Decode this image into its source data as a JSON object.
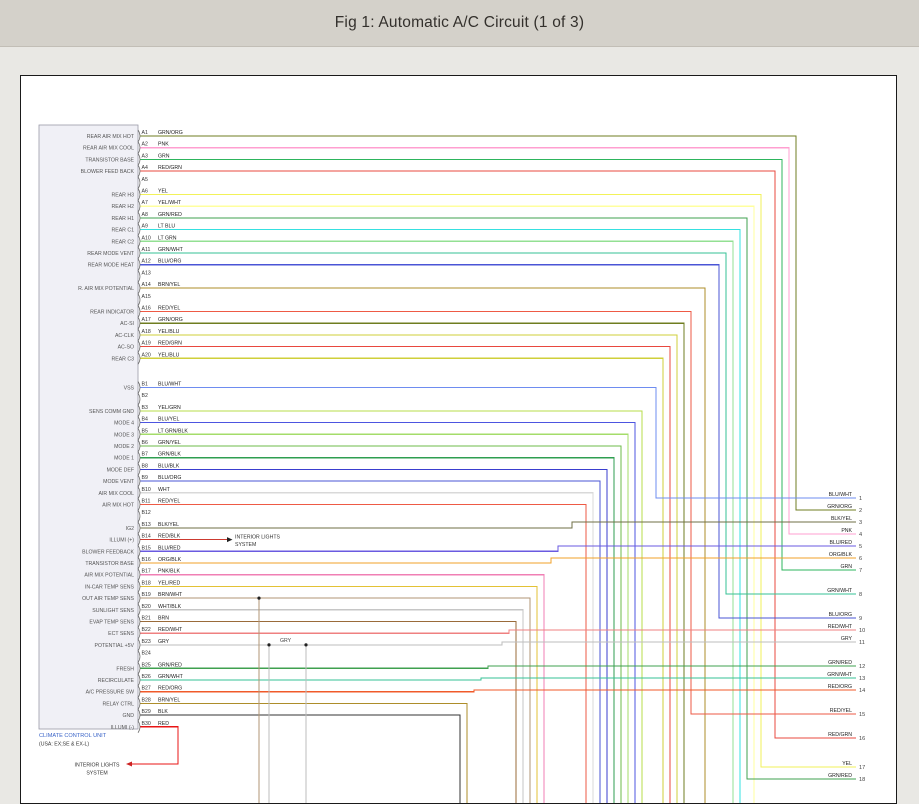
{
  "header": {
    "title": "Fig 1: Automatic A/C Circuit (1 of 3)"
  },
  "diagram": {
    "unit_label": "CLIMATE CONTROL UNIT",
    "unit_sublabel": "(USA: EX;SE & EX-L)",
    "interior_lights_mid": [
      "INTERIOR LIGHTS",
      "SYSTEM"
    ],
    "interior_lights_bottom": [
      "INTERIOR LIGHTS",
      "SYSTEM"
    ],
    "gry_junction_label": "GRY",
    "wire_colors": {
      "GRN/ORG": "#6f7d20",
      "PNK": "#ff9fd0",
      "GRN": "#2db55d",
      "RED/GRN": "#e8483f",
      "YEL": "#f2f259",
      "YEL/WHT": "#ffff9e",
      "GRN/RED": "#3fa04f",
      "LT BLU": "#35e0e0",
      "LT GRN": "#93e093",
      "GRN/WHT": "#36c295",
      "BLU/ORG": "#4a55d6",
      "BRN/YEL": "#ad8d2a",
      "RED/YEL": "#ee5a45",
      "YEL/BLU": "#cfcf3a",
      "BLU/WHT": "#6e8cf0",
      "YEL/GRN": "#b7dd4a",
      "BLU/YEL": "#4d55e0",
      "LT GRN/BLK": "#a4dc6a",
      "GRN/YEL": "#6cbb48",
      "GRN/BLK": "#2f9e50",
      "BLU/BLK": "#3a3ecf",
      "WHT": "#d9d9d9",
      "BLK/YEL": "#6f6f45",
      "RED/BLK": "#cc3a30",
      "BLU/RED": "#6a5ae0",
      "ORG/BLK": "#f0a028",
      "PNK/BLK": "#f07fb4",
      "YEL/RED": "#e3c235",
      "BRN/WHT": "#b29674",
      "WHT/BLK": "#c6c6c6",
      "BRN": "#9a6b3a",
      "RED/WHT": "#ef8080",
      "GRY": "#bdbdbd",
      "RED/ORG": "#f05a2a",
      "BLK": "#333333",
      "RED": "#e81515"
    },
    "pins": [
      {
        "pin": "A1",
        "label": "REAR AIR MIX HOT",
        "wire": "GRN/ORG",
        "dest": "R2"
      },
      {
        "pin": "A2",
        "label": "REAR AIR MIX COOL",
        "wire": "PNK",
        "dest": "R4"
      },
      {
        "pin": "A3",
        "label": "TRANSISTOR BASE",
        "wire": "GRN",
        "dest": "R7"
      },
      {
        "pin": "A4",
        "label": "BLOWER FEED BACK",
        "wire": "RED/GRN",
        "dest": "R16"
      },
      {
        "pin": "A5",
        "label": "",
        "wire": null,
        "dest": null
      },
      {
        "pin": "A6",
        "label": "REAR H3",
        "wire": "YEL",
        "dest": "R17"
      },
      {
        "pin": "A7",
        "label": "REAR H2",
        "wire": "YEL/WHT",
        "dest": "down"
      },
      {
        "pin": "A8",
        "label": "REAR H1",
        "wire": "GRN/RED",
        "dest": "R18"
      },
      {
        "pin": "A9",
        "label": "REAR C1",
        "wire": "LT BLU",
        "dest": "down"
      },
      {
        "pin": "A10",
        "label": "REAR C2",
        "wire": "LT GRN",
        "dest": "down"
      },
      {
        "pin": "A11",
        "label": "REAR MODE VENT",
        "wire": "GRN/WHT",
        "dest": "R8"
      },
      {
        "pin": "A12",
        "label": "REAR MODE HEAT",
        "wire": "BLU/ORG",
        "dest": "R9"
      },
      {
        "pin": "A13",
        "label": "",
        "wire": null,
        "dest": null
      },
      {
        "pin": "A14",
        "label": "R. AIR MIX POTENTIAL",
        "wire": "BRN/YEL",
        "dest": "down"
      },
      {
        "pin": "A15",
        "label": "",
        "wire": null,
        "dest": null
      },
      {
        "pin": "A16",
        "label": "REAR INDICATOR",
        "wire": "RED/YEL",
        "dest": "R15"
      },
      {
        "pin": "A17",
        "label": "AC-SI",
        "wire": "GRN/ORG",
        "dest": "down"
      },
      {
        "pin": "A18",
        "label": "AC-CLK",
        "wire": "YEL/BLU",
        "dest": "down"
      },
      {
        "pin": "A19",
        "label": "AC-SO",
        "wire": "RED/GRN",
        "dest": "down"
      },
      {
        "pin": "A20",
        "label": "REAR C3",
        "wire": "YEL/BLU",
        "dest": "down"
      },
      {
        "pin": "B1",
        "label": "VSS",
        "wire": "BLU/WHT",
        "dest": "R1"
      },
      {
        "pin": "B2",
        "label": "",
        "wire": null,
        "dest": null
      },
      {
        "pin": "B3",
        "label": "SENS COMM GND",
        "wire": "YEL/GRN",
        "dest": "down"
      },
      {
        "pin": "B4",
        "label": "MODE 4",
        "wire": "BLU/YEL",
        "dest": "down"
      },
      {
        "pin": "B5",
        "label": "MODE 3",
        "wire": "LT GRN/BLK",
        "dest": "down"
      },
      {
        "pin": "B6",
        "label": "MODE 2",
        "wire": "GRN/YEL",
        "dest": "down"
      },
      {
        "pin": "B7",
        "label": "MODE 1",
        "wire": "GRN/BLK",
        "dest": "down"
      },
      {
        "pin": "B8",
        "label": "MODE DEF",
        "wire": "BLU/BLK",
        "dest": "down"
      },
      {
        "pin": "B9",
        "label": "MODE VENT",
        "wire": "BLU/ORG",
        "dest": "down"
      },
      {
        "pin": "B10",
        "label": "AIR MIX COOL",
        "wire": "WHT",
        "dest": "down"
      },
      {
        "pin": "B11",
        "label": "AIR MIX HOT",
        "wire": "RED/YEL",
        "dest": "down"
      },
      {
        "pin": "B12",
        "label": "",
        "wire": null,
        "dest": null
      },
      {
        "pin": "B13",
        "label": "IG2",
        "wire": "BLK/YEL",
        "dest": "R3"
      },
      {
        "pin": "B14",
        "label": "ILLUMI (+)",
        "wire": "RED/BLK",
        "dest": "interior-mid"
      },
      {
        "pin": "B15",
        "label": "BLOWER FEEDBACK",
        "wire": "BLU/RED",
        "dest": "R5"
      },
      {
        "pin": "B16",
        "label": "TRANSISTOR BASE",
        "wire": "ORG/BLK",
        "dest": "R6"
      },
      {
        "pin": "B17",
        "label": "AIR MIX POTENTIAL",
        "wire": "PNK/BLK",
        "dest": "down"
      },
      {
        "pin": "B18",
        "label": "IN-CAR TEMP SENS",
        "wire": "YEL/RED",
        "dest": "down"
      },
      {
        "pin": "B19",
        "label": "OUT AIR TEMP SENS",
        "wire": "BRN/WHT",
        "dest": "down",
        "dots": [
          238
        ]
      },
      {
        "pin": "B20",
        "label": "SUNLIGHT SENS",
        "wire": "WHT/BLK",
        "dest": "down"
      },
      {
        "pin": "B21",
        "label": "EVAP TEMP SENS",
        "wire": "BRN",
        "dest": "down"
      },
      {
        "pin": "B22",
        "label": "ECT SENS",
        "wire": "RED/WHT",
        "dest": "R10"
      },
      {
        "pin": "B23",
        "label": "POTENTIAL +5V",
        "wire": "GRY",
        "dest": "R11",
        "dots": [
          248,
          285
        ]
      },
      {
        "pin": "B24",
        "label": "",
        "wire": null,
        "dest": null
      },
      {
        "pin": "B25",
        "label": "FRESH",
        "wire": "GRN/RED",
        "dest": "R12"
      },
      {
        "pin": "B26",
        "label": "RECIRCULATE",
        "wire": "GRN/WHT",
        "dest": "R13"
      },
      {
        "pin": "B27",
        "label": "A/C PRESSURE SW",
        "wire": "RED/ORG",
        "dest": "R14"
      },
      {
        "pin": "B28",
        "label": "RELAY CTRL",
        "wire": "BRN/YEL",
        "dest": "down"
      },
      {
        "pin": "B29",
        "label": "GND",
        "wire": "BLK",
        "dest": "down"
      },
      {
        "pin": "B30",
        "label": "ILLUMI (-)",
        "wire": "RED",
        "dest": "interior-bottom"
      }
    ],
    "right_labels": [
      {
        "num": "1",
        "wire": "BLU/WHT"
      },
      {
        "num": "2",
        "wire": "GRN/ORG"
      },
      {
        "num": "3",
        "wire": "BLK/YEL"
      },
      {
        "num": "4",
        "wire": "PNK"
      },
      {
        "num": "5",
        "wire": "BLU/RED"
      },
      {
        "num": "6",
        "wire": "ORG/BLK"
      },
      {
        "num": "7",
        "wire": "GRN"
      },
      {
        "num": "8",
        "wire": "GRN/WHT"
      },
      {
        "num": "9",
        "wire": "BLU/ORG"
      },
      {
        "num": "10",
        "wire": "RED/WHT"
      },
      {
        "num": "11",
        "wire": "GRY"
      },
      {
        "num": "12",
        "wire": "GRN/RED"
      },
      {
        "num": "13",
        "wire": "GRN/WHT"
      },
      {
        "num": "14",
        "wire": "RED/ORG"
      },
      {
        "num": "15",
        "wire": "RED/YEL"
      },
      {
        "num": "16",
        "wire": "RED/GRN"
      },
      {
        "num": "17",
        "wire": "YEL"
      },
      {
        "num": "18",
        "wire": "GRN/RED"
      }
    ]
  }
}
